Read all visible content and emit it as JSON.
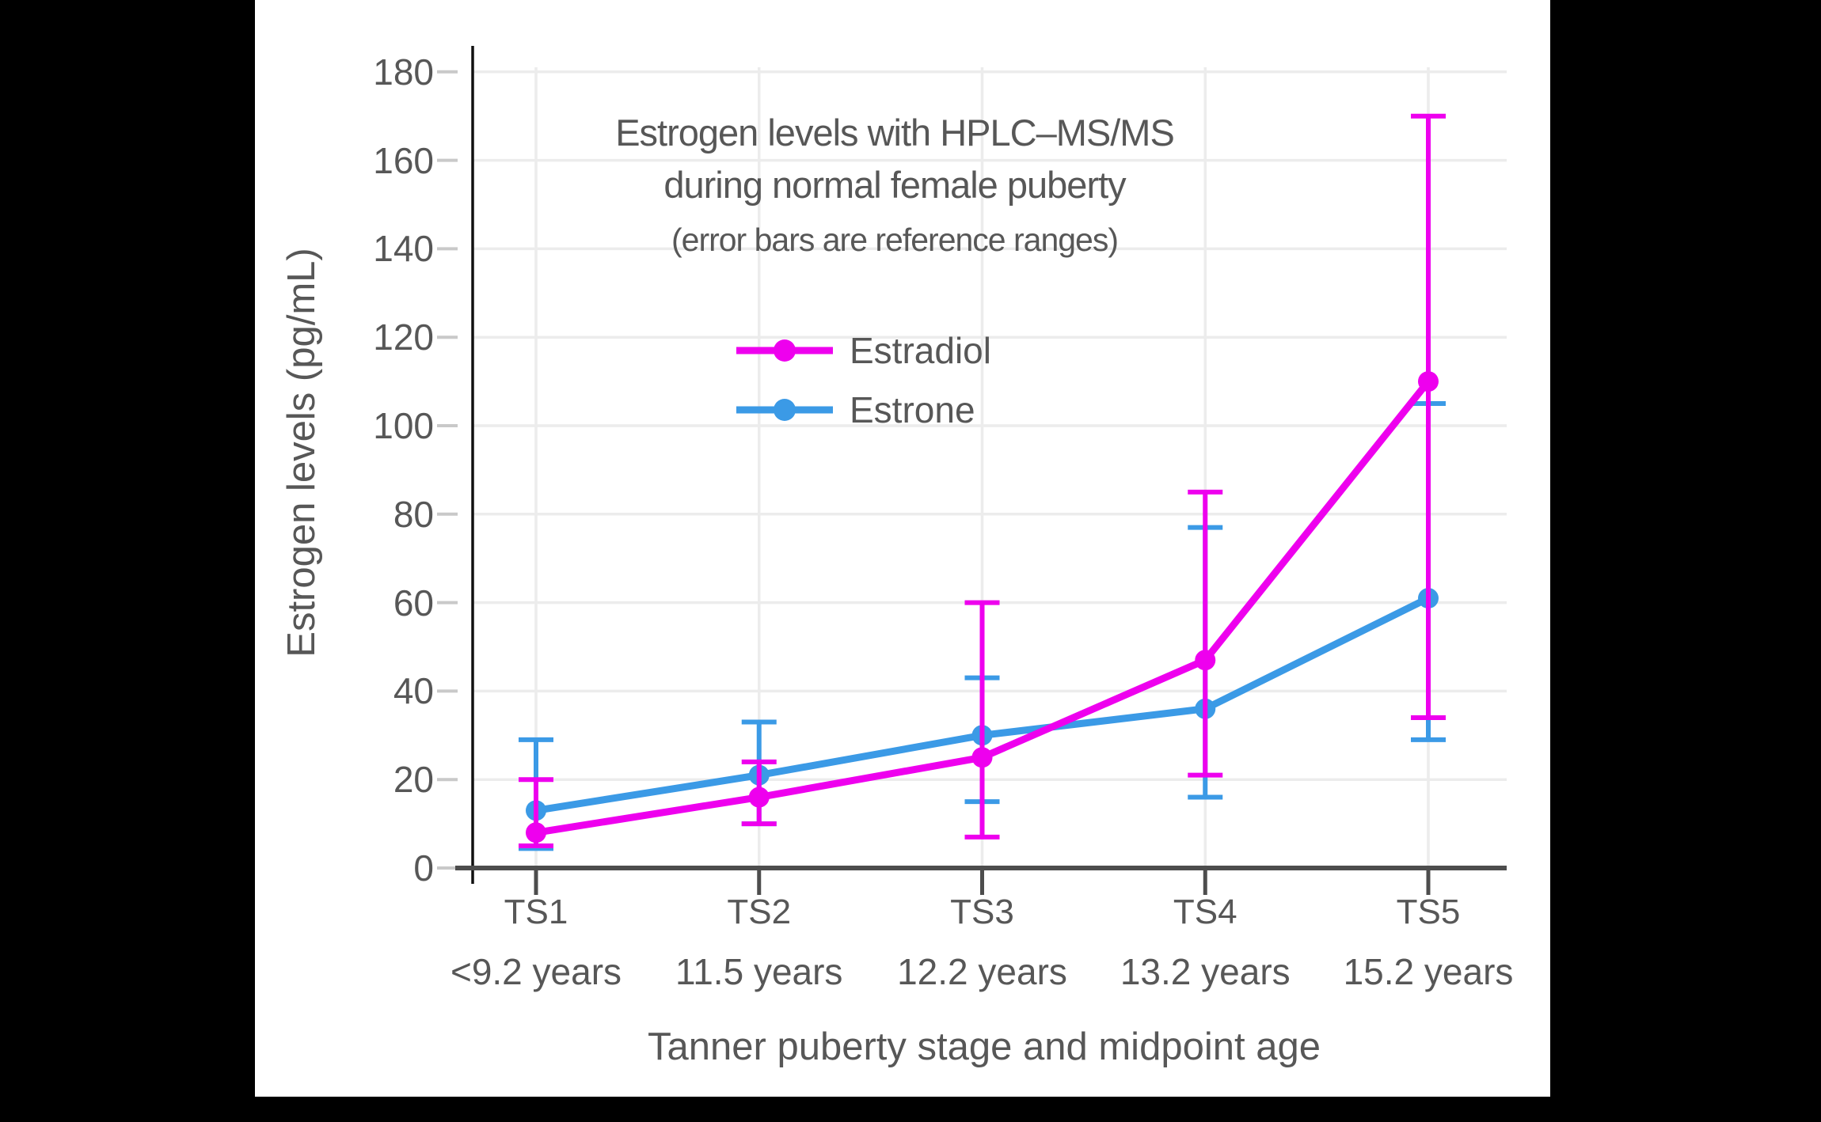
{
  "figure": {
    "title_line1": "Estrogen levels with HPLC–MS/MS",
    "title_line2": "during normal female puberty",
    "subtitle": "(error bars are reference ranges)"
  },
  "chart_data": {
    "type": "line",
    "categories": [
      "TS1",
      "TS2",
      "TS3",
      "TS4",
      "TS5"
    ],
    "category_sublabels": [
      "<9.2 years",
      "11.5 years",
      "12.2 years",
      "13.2 years",
      "15.2 years"
    ],
    "xlabel": "Tanner puberty stage and midpoint age",
    "ylabel": "Estrogen levels (pg/mL)",
    "ylim": [
      0,
      180
    ],
    "yticks": [
      0,
      20,
      40,
      60,
      80,
      100,
      120,
      140,
      160,
      180
    ],
    "grid": true,
    "legend_position": "upper-left-inside",
    "error_bars": "reference ranges",
    "series": [
      {
        "name": "Estradiol",
        "color": "#ee00ee",
        "values": [
          8,
          16,
          25,
          47,
          110
        ],
        "range_low": [
          5,
          10,
          7,
          21,
          34
        ],
        "range_high": [
          20,
          24,
          60,
          85,
          170
        ]
      },
      {
        "name": "Estrone",
        "color": "#3b9ae6",
        "values": [
          13,
          21,
          30,
          36,
          61
        ],
        "range_low": [
          4.4,
          10,
          15,
          16,
          29
        ],
        "range_high": [
          29,
          33,
          43,
          77,
          105
        ]
      }
    ]
  },
  "colors": {
    "background": "#000000",
    "panel": "#ffffff",
    "text": "#575757",
    "gridline": "#ececec",
    "y_axis": "#111111",
    "x_axis": "#4d4d4d",
    "y_tick": "#c9c9c9",
    "estradiol": "#ee00ee",
    "estrone": "#3b9ae6"
  }
}
